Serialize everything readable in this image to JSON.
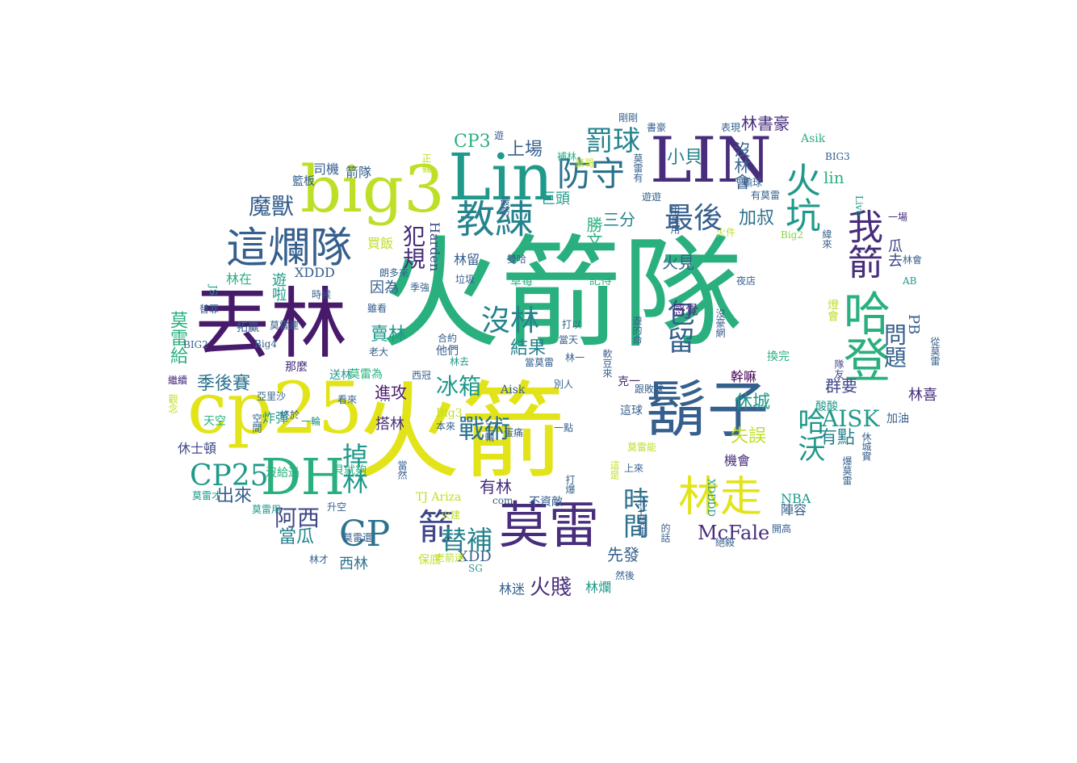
{
  "palette": {
    "yellow": "#e2e419",
    "yellow_green": "#bddf26",
    "lime": "#86d549",
    "green": "#52c569",
    "emerald": "#2ab07f",
    "teal": "#1f998a",
    "teal_blue": "#25838e",
    "blue_teal": "#2c728e",
    "blue": "#355f8d",
    "indigo": "#3f4788",
    "purple_blue": "#472d7b",
    "purple": "#481a6c",
    "dark": "#440154"
  },
  "words": [
    {
      "text": "火箭隊",
      "size": 150,
      "color": "emerald"
    },
    {
      "text": "火箭",
      "size": 130,
      "color": "yellow"
    },
    {
      "text": "丟林",
      "size": 95,
      "color": "purple"
    },
    {
      "text": "cp25",
      "size": 88,
      "color": "yellow"
    },
    {
      "text": "big3",
      "size": 80,
      "color": "yellow_green"
    },
    {
      "text": "Lin",
      "size": 80,
      "color": "teal"
    },
    {
      "text": "LIN",
      "size": 78,
      "color": "purple_blue"
    },
    {
      "text": "鬍子",
      "size": 76,
      "color": "blue"
    },
    {
      "text": "DH",
      "size": 62,
      "color": "emerald"
    },
    {
      "text": "莫雷",
      "size": 62,
      "color": "purple_blue"
    },
    {
      "text": "哈登",
      "size": 58,
      "color": "emerald"
    },
    {
      "text": "這爛隊",
      "size": 52,
      "color": "blue"
    },
    {
      "text": "教練",
      "size": 48,
      "color": "teal_blue"
    },
    {
      "text": "林走",
      "size": 52,
      "color": "yellow"
    },
    {
      "text": "CP",
      "size": 44,
      "color": "blue_teal"
    },
    {
      "text": "防守",
      "size": 42,
      "color": "blue_teal"
    },
    {
      "text": "火坑",
      "size": 44,
      "color": "teal"
    },
    {
      "text": "我箭",
      "size": 44,
      "color": "purple_blue"
    },
    {
      "text": "CP25",
      "size": 36,
      "color": "teal"
    },
    {
      "text": "箭",
      "size": 44,
      "color": "indigo"
    },
    {
      "text": "最後",
      "size": 36,
      "color": "blue"
    },
    {
      "text": "罰球",
      "size": 34,
      "color": "teal_blue"
    },
    {
      "text": "魔獸",
      "size": 28,
      "color": "blue"
    },
    {
      "text": "沒林",
      "size": 36,
      "color": "teal_blue"
    },
    {
      "text": "包留",
      "size": 34,
      "color": "blue"
    },
    {
      "text": "戰術",
      "size": 32,
      "color": "blue_teal"
    },
    {
      "text": "替補",
      "size": 32,
      "color": "teal_blue"
    },
    {
      "text": "時間",
      "size": 32,
      "color": "blue_teal"
    },
    {
      "text": "哈沃",
      "size": 34,
      "color": "teal"
    },
    {
      "text": "問題",
      "size": 28,
      "color": "blue"
    },
    {
      "text": "犯規",
      "size": 28,
      "color": "purple_blue"
    },
    {
      "text": "掉林",
      "size": 32,
      "color": "teal"
    },
    {
      "text": "冰箱",
      "size": 28,
      "color": "teal"
    },
    {
      "text": "阿西",
      "size": 28,
      "color": "indigo"
    },
    {
      "text": "AISK",
      "size": 28,
      "color": "teal"
    },
    {
      "text": "McFale",
      "size": 24,
      "color": "purple_blue"
    },
    {
      "text": "火賤",
      "size": 26,
      "color": "purple_blue"
    },
    {
      "text": "上場",
      "size": 22,
      "color": "blue"
    },
    {
      "text": "CP3",
      "size": 22,
      "color": "emerald"
    },
    {
      "text": "小貝",
      "size": 22,
      "color": "teal_blue"
    },
    {
      "text": "加叔",
      "size": 22,
      "color": "blue_teal"
    },
    {
      "text": "沒林會",
      "size": 20,
      "color": "blue"
    },
    {
      "text": "林書豪",
      "size": 20,
      "color": "purple_blue"
    },
    {
      "text": "勝文",
      "size": 20,
      "color": "emerald"
    },
    {
      "text": "三分",
      "size": 20,
      "color": "teal_blue"
    },
    {
      "text": "巨頭",
      "size": 18,
      "color": "teal"
    },
    {
      "text": "火見",
      "size": 20,
      "color": "blue"
    },
    {
      "text": "lin",
      "size": 20,
      "color": "emerald"
    },
    {
      "text": "瓜去",
      "size": 18,
      "color": "indigo"
    },
    {
      "text": "休城",
      "size": 22,
      "color": "teal"
    },
    {
      "text": "失誤",
      "size": 22,
      "color": "yellow_green"
    },
    {
      "text": "有點",
      "size": 22,
      "color": "teal_blue"
    },
    {
      "text": "群要",
      "size": 20,
      "color": "indigo"
    },
    {
      "text": "PB",
      "size": 18,
      "color": "blue"
    },
    {
      "text": "林喜",
      "size": 18,
      "color": "purple_blue"
    },
    {
      "text": "加油",
      "size": 14,
      "color": "blue"
    },
    {
      "text": "季後賽",
      "size": 22,
      "color": "blue_teal"
    },
    {
      "text": "莫雷給",
      "size": 22,
      "color": "emerald"
    },
    {
      "text": "賣林",
      "size": 22,
      "color": "teal"
    },
    {
      "text": "結果",
      "size": 22,
      "color": "teal_blue"
    },
    {
      "text": "有林",
      "size": 20,
      "color": "purple_blue"
    },
    {
      "text": "先發",
      "size": 20,
      "color": "blue"
    },
    {
      "text": "機會",
      "size": 16,
      "color": "purple_blue"
    },
    {
      "text": "出來",
      "size": 22,
      "color": "blue"
    },
    {
      "text": "當瓜",
      "size": 22,
      "color": "teal_blue"
    },
    {
      "text": "XDD",
      "size": 18,
      "color": "blue"
    },
    {
      "text": "西林",
      "size": 18,
      "color": "blue_teal"
    },
    {
      "text": "林迷",
      "size": 16,
      "color": "blue"
    },
    {
      "text": "林爛",
      "size": 16,
      "color": "teal"
    },
    {
      "text": "進攻",
      "size": 20,
      "color": "purple"
    },
    {
      "text": "搭林",
      "size": 18,
      "color": "purple_blue"
    },
    {
      "text": "休士頓",
      "size": 16,
      "color": "indigo"
    },
    {
      "text": "NBA",
      "size": 16,
      "color": "teal"
    },
    {
      "text": "陣容",
      "size": 16,
      "color": "blue"
    },
    {
      "text": "遊啦",
      "size": 18,
      "color": "teal"
    },
    {
      "text": "因為",
      "size": 18,
      "color": "blue"
    },
    {
      "text": "林在",
      "size": 16,
      "color": "emerald"
    },
    {
      "text": "XDDD",
      "size": 16,
      "color": "blue"
    },
    {
      "text": "林留",
      "size": 16,
      "color": "blue"
    },
    {
      "text": "買飯",
      "size": 16,
      "color": "yellow_green"
    },
    {
      "text": "箭隊",
      "size": 16,
      "color": "blue"
    },
    {
      "text": "司機",
      "size": 16,
      "color": "blue"
    },
    {
      "text": "籃板",
      "size": 14,
      "color": "blue"
    },
    {
      "text": "Harden",
      "size": 16,
      "color": "indigo"
    },
    {
      "text": "JS",
      "size": 12,
      "color": "teal"
    },
    {
      "text": "感覺",
      "size": 16,
      "color": "purple_blue"
    },
    {
      "text": "幹嘛",
      "size": 16,
      "color": "dark"
    },
    {
      "text": "換完",
      "size": 14,
      "color": "emerald"
    },
    {
      "text": "隊友",
      "size": 12,
      "color": "indigo"
    },
    {
      "text": "酸酸",
      "size": 14,
      "color": "teal"
    },
    {
      "text": "燈會",
      "size": 14,
      "color": "yellow_green"
    },
    {
      "text": "Asik",
      "size": 14,
      "color": "emerald"
    },
    {
      "text": "Aisk",
      "size": 14,
      "color": "blue"
    },
    {
      "text": "炸彈",
      "size": 16,
      "color": "teal"
    },
    {
      "text": "那麼",
      "size": 14,
      "color": "purple_blue"
    },
    {
      "text": "送林",
      "size": 14,
      "color": "teal"
    },
    {
      "text": "莫雷為",
      "size": 14,
      "color": "emerald"
    },
    {
      "text": "沒給過",
      "size": 14,
      "color": "emerald"
    },
    {
      "text": "貝就夠",
      "size": 14,
      "color": "emerald"
    },
    {
      "text": "一輪",
      "size": 12,
      "color": "teal"
    },
    {
      "text": "當然",
      "size": 12,
      "color": "blue"
    },
    {
      "text": "莫雷用",
      "size": 12,
      "color": "teal"
    },
    {
      "text": "升空",
      "size": 12,
      "color": "blue"
    },
    {
      "text": "莫雷才",
      "size": 12,
      "color": "teal"
    },
    {
      "text": "天空",
      "size": 14,
      "color": "emerald"
    },
    {
      "text": "Big3",
      "size": 14,
      "color": "yellow_green"
    },
    {
      "text": "TJ Ariza",
      "size": 14,
      "color": "yellow_green"
    },
    {
      "text": "草莓",
      "size": 14,
      "color": "emerald"
    },
    {
      "text": "記得",
      "size": 14,
      "color": "emerald"
    },
    {
      "text": "這球",
      "size": 14,
      "color": "blue"
    },
    {
      "text": "上來",
      "size": 12,
      "color": "blue"
    },
    {
      "text": "XDDDD",
      "size": 12,
      "color": "teal"
    },
    {
      "text": "打爆",
      "size": 12,
      "color": "blue"
    },
    {
      "text": "com",
      "size": 12,
      "color": "blue"
    },
    {
      "text": "不資敵",
      "size": 14,
      "color": "blue"
    },
    {
      "text": "保底",
      "size": 14,
      "color": "yellow_green"
    },
    {
      "text": "SG",
      "size": 12,
      "color": "teal"
    },
    {
      "text": "Live",
      "size": 12,
      "color": "teal"
    },
    {
      "text": "Big2",
      "size": 12,
      "color": "lime"
    },
    {
      "text": "一場",
      "size": 12,
      "color": "purple_blue"
    },
    {
      "text": "AB",
      "size": 12,
      "color": "teal"
    },
    {
      "text": "BIG3",
      "size": 12,
      "color": "blue"
    },
    {
      "text": "BIG2",
      "size": 12,
      "color": "blue"
    },
    {
      "text": "Big4",
      "size": 12,
      "color": "blue"
    },
    {
      "text": "克一",
      "size": 14,
      "color": "purple_blue"
    },
    {
      "text": "他們",
      "size": 14,
      "color": "blue"
    },
    {
      "text": "雖看",
      "size": 12,
      "color": "blue"
    },
    {
      "text": "時候",
      "size": 12,
      "color": "blue"
    },
    {
      "text": "拓贏",
      "size": 14,
      "color": "blue"
    },
    {
      "text": "繼續",
      "size": 12,
      "color": "purple_blue"
    },
    {
      "text": "亞里沙",
      "size": 12,
      "color": "blue"
    },
    {
      "text": "看來",
      "size": 12,
      "color": "blue"
    },
    {
      "text": "終於",
      "size": 12,
      "color": "blue"
    },
    {
      "text": "本來",
      "size": 12,
      "color": "blue"
    },
    {
      "text": "西冠",
      "size": 12,
      "color": "blue"
    },
    {
      "text": "林一",
      "size": 12,
      "color": "blue"
    },
    {
      "text": "雙哈",
      "size": 12,
      "color": "blue"
    },
    {
      "text": "垃圾",
      "size": 12,
      "color": "blue"
    },
    {
      "text": "季強",
      "size": 12,
      "color": "blue"
    },
    {
      "text": "朗多來",
      "size": 12,
      "color": "blue"
    },
    {
      "text": "打以",
      "size": 12,
      "color": "blue"
    },
    {
      "text": "當天",
      "size": 12,
      "color": "blue"
    },
    {
      "text": "合約",
      "size": 12,
      "color": "blue"
    },
    {
      "text": "林去",
      "size": 12,
      "color": "teal"
    },
    {
      "text": "當莫雷",
      "size": 12,
      "color": "blue"
    },
    {
      "text": "老大",
      "size": 12,
      "color": "blue"
    },
    {
      "text": "莫雷連",
      "size": 12,
      "color": "blue"
    },
    {
      "text": "替罪",
      "size": 12,
      "color": "blue"
    },
    {
      "text": "補林",
      "size": 12,
      "color": "emerald"
    },
    {
      "text": "遊",
      "size": 12,
      "color": "blue"
    },
    {
      "text": "正義",
      "size": 12,
      "color": "yellow_green"
    },
    {
      "text": "莫雷有",
      "size": 12,
      "color": "blue"
    },
    {
      "text": "豪哥",
      "size": 12,
      "color": "yellow_green"
    },
    {
      "text": "剛剛",
      "size": 12,
      "color": "blue"
    },
    {
      "text": "書豪",
      "size": 12,
      "color": "blue"
    },
    {
      "text": "表現",
      "size": 12,
      "color": "blue"
    },
    {
      "text": "遊遊",
      "size": 12,
      "color": "blue"
    },
    {
      "text": "輸球",
      "size": 12,
      "color": "blue"
    },
    {
      "text": "有莫雷",
      "size": 12,
      "color": "blue"
    },
    {
      "text": "緯來",
      "size": 12,
      "color": "blue"
    },
    {
      "text": "林會",
      "size": 12,
      "color": "blue"
    },
    {
      "text": "夜店",
      "size": 12,
      "color": "blue"
    },
    {
      "text": "火件",
      "size": 12,
      "color": "yellow_green"
    },
    {
      "text": "別人",
      "size": 12,
      "color": "blue"
    },
    {
      "text": "跟敗球",
      "size": 12,
      "color": "blue"
    },
    {
      "text": "絕殺",
      "size": 12,
      "color": "blue"
    },
    {
      "text": "開高",
      "size": 12,
      "color": "blue"
    },
    {
      "text": "的話",
      "size": 12,
      "color": "blue"
    },
    {
      "text": "然後",
      "size": 12,
      "color": "blue"
    },
    {
      "text": "火建",
      "size": 12,
      "color": "yellow_green"
    },
    {
      "text": "老箭迷",
      "size": 12,
      "color": "yellow_green"
    },
    {
      "text": "林才",
      "size": 12,
      "color": "blue"
    },
    {
      "text": "莫雷還",
      "size": 12,
      "color": "blue"
    },
    {
      "text": "一點",
      "size": 12,
      "color": "blue"
    },
    {
      "text": "空間",
      "size": 12,
      "color": "blue"
    },
    {
      "text": "休城實",
      "size": 12,
      "color": "blue"
    },
    {
      "text": "爆莫雷",
      "size": 12,
      "color": "blue"
    },
    {
      "text": "從莫雷",
      "size": 12,
      "color": "blue"
    },
    {
      "text": "沒豪網",
      "size": 12,
      "color": "blue"
    },
    {
      "text": "用莫用",
      "size": 12,
      "color": "blue"
    },
    {
      "text": "遊的命",
      "size": 12,
      "color": "blue"
    },
    {
      "text": "軟豆來",
      "size": 12,
      "color": "blue"
    },
    {
      "text": "最虧",
      "size": 12,
      "color": "blue"
    },
    {
      "text": "北七莫雷",
      "size": 12,
      "color": "blue"
    },
    {
      "text": "這是",
      "size": 12,
      "color": "yellow_green"
    },
    {
      "text": "莫雷能",
      "size": 12,
      "color": "yellow_green"
    },
    {
      "text": "蛋痛",
      "size": 12,
      "color": "blue"
    },
    {
      "text": "三輪",
      "size": 12,
      "color": "blue"
    },
    {
      "text": "觀念",
      "size": 12,
      "color": "yellow_green"
    },
    {
      "text": "…",
      "size": 14,
      "color": "blue"
    }
  ]
}
